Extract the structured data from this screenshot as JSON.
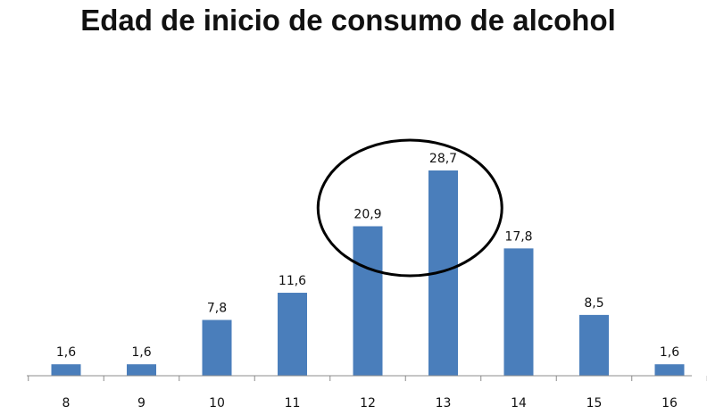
{
  "chart_data": {
    "type": "bar",
    "title": "Edad de inicio de consumo de alcohol",
    "categories": [
      "8",
      "9",
      "10",
      "11",
      "12",
      "13",
      "14",
      "15",
      "16"
    ],
    "values": [
      1.6,
      1.6,
      7.8,
      11.6,
      20.9,
      28.7,
      17.8,
      8.5,
      1.6
    ],
    "data_labels": [
      "1,6",
      "1,6",
      "7,8",
      "11,6",
      "20,9",
      "28,7",
      "17,8",
      "8,5",
      "1,6"
    ],
    "ylim": [
      0,
      33
    ],
    "grid": false,
    "legend": "none",
    "bar_color": "#4a7ebb",
    "annotation": {
      "type": "circle",
      "highlights": [
        "12",
        "13"
      ],
      "color": "#000000"
    }
  }
}
